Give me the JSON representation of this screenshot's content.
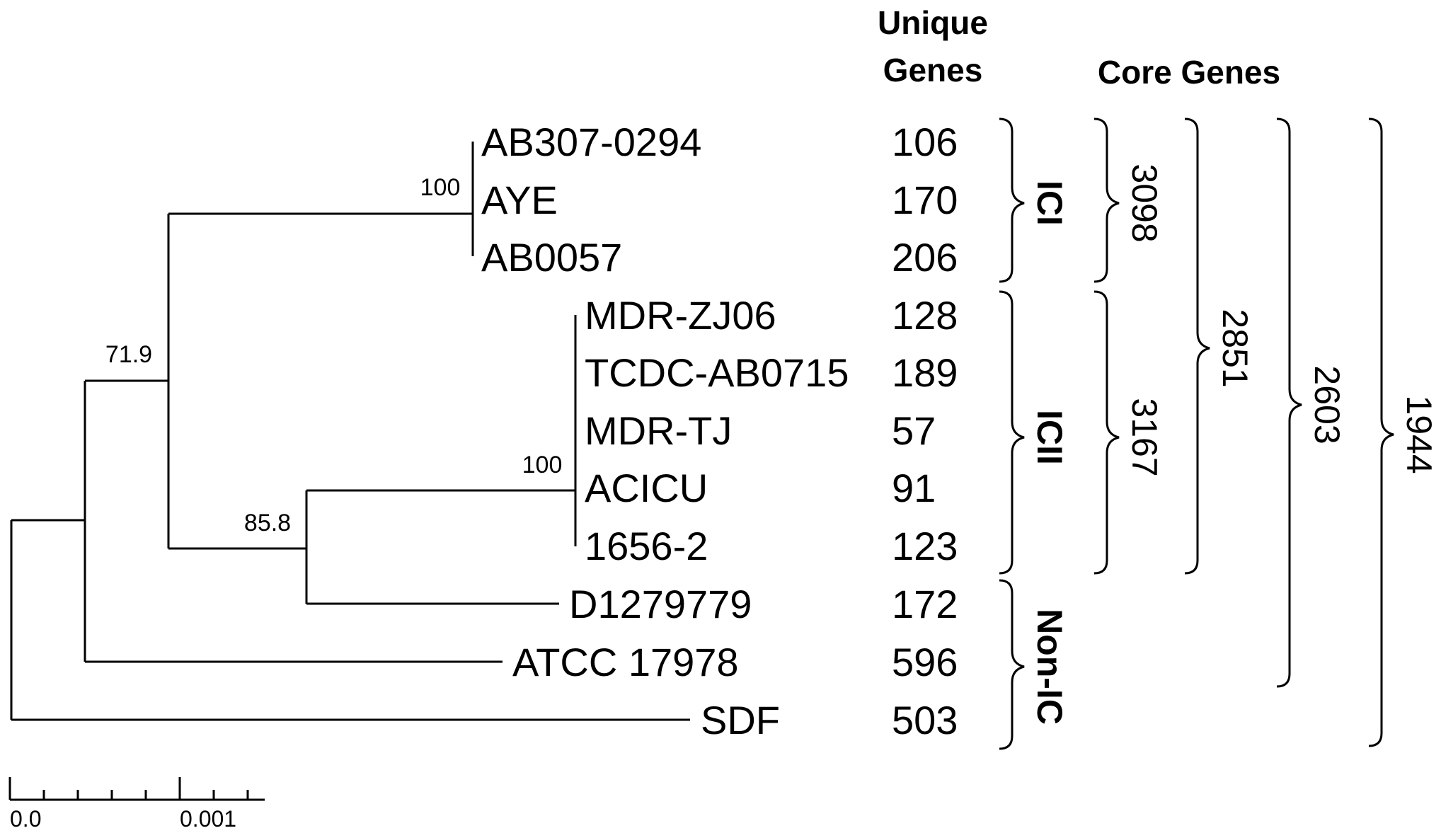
{
  "headers": {
    "unique_genes_line1": "Unique",
    "unique_genes_line2": "Genes",
    "core_genes": "Core Genes"
  },
  "taxa": [
    {
      "name": "AB307-0294",
      "unique": "106"
    },
    {
      "name": "AYE",
      "unique": "170"
    },
    {
      "name": "AB0057",
      "unique": "206"
    },
    {
      "name": "MDR-ZJ06",
      "unique": "128"
    },
    {
      "name": "TCDC-AB0715",
      "unique": "189"
    },
    {
      "name": "MDR-TJ",
      "unique": "57"
    },
    {
      "name": "ACICU",
      "unique": "91"
    },
    {
      "name": "1656-2",
      "unique": "123"
    },
    {
      "name": "D1279779",
      "unique": "172"
    },
    {
      "name": "ATCC 17978",
      "unique": "596"
    },
    {
      "name": "SDF",
      "unique": "503"
    }
  ],
  "bootstrap": {
    "ic1_node": "100",
    "ic2_node": "100",
    "node_71": "71.9",
    "node_85": "85.8"
  },
  "groups": {
    "ic1": "ICI",
    "ic2": "ICII",
    "non_ic": "Non-IC"
  },
  "core_genes": {
    "ic1": "3098",
    "ic2": "3167",
    "ic1_ic2": "2851",
    "ic_plus_d": "2603",
    "all": "1944"
  },
  "scale_bar": {
    "start_label": "0.0",
    "end_label": "0.001"
  }
}
